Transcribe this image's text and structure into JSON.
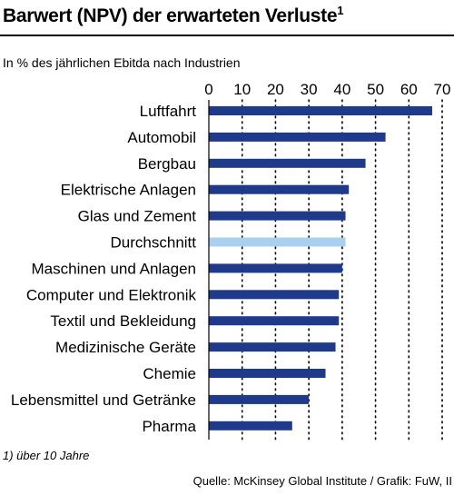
{
  "header": {
    "title": "Barwert (NPV) der erwarteten Verluste",
    "title_sup": "1",
    "subtitle": "In % des jährlichen Ebitda nach Industrien"
  },
  "footer": {
    "footnote": "1) über 10 Jahre",
    "source": "Quelle: McKinsey Global Institute / Grafik: FuW, II"
  },
  "colors": {
    "bar": "#1f3a8a",
    "highlight": "#a9d0ee",
    "grid": "#000000"
  },
  "chart_data": {
    "type": "bar",
    "orientation": "horizontal",
    "categories": [
      "Luftfahrt",
      "Automobil",
      "Bergbau",
      "Elektrische Anlagen",
      "Glas und Zement",
      "Durchschnitt",
      "Maschinen und Anlagen",
      "Computer und Elektronik",
      "Textil und Bekleidung",
      "Medizinische Geräte",
      "Chemie",
      "Lebensmittel und Getränke",
      "Pharma"
    ],
    "values": [
      67,
      53,
      47,
      42,
      41,
      41,
      40,
      39,
      39,
      38,
      35,
      30,
      25
    ],
    "highlight_category": "Durchschnitt",
    "xlim": [
      0,
      70
    ],
    "xticks": [
      0,
      10,
      20,
      30,
      40,
      50,
      60,
      70
    ],
    "grid": "dotted vertical",
    "axis_position": "top"
  }
}
